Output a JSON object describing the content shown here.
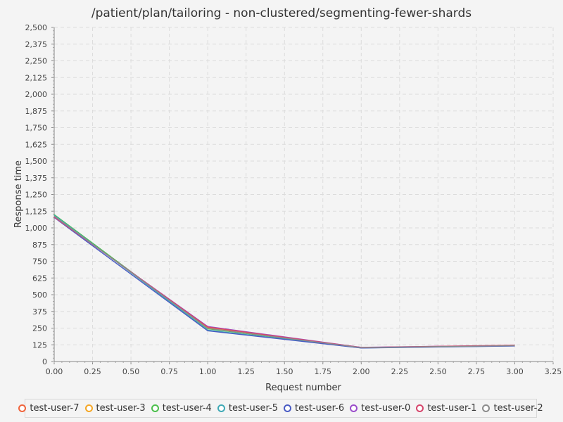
{
  "chart_data": {
    "type": "line",
    "title": "/patient/plan/tailoring - non-clustered/segmenting-fewer-shards",
    "xlabel": "Request number",
    "ylabel": "Response time",
    "xlim": [
      0,
      3.25
    ],
    "ylim": [
      0,
      2500
    ],
    "x_ticks": [
      "0.00",
      "0.25",
      "0.50",
      "0.75",
      "1.00",
      "1.25",
      "1.50",
      "1.75",
      "2.00",
      "2.25",
      "2.50",
      "2.75",
      "3.00",
      "3.25"
    ],
    "y_ticks": [
      "0",
      "125",
      "250",
      "375",
      "500",
      "625",
      "750",
      "875",
      "1,000",
      "1,125",
      "1,250",
      "1,375",
      "1,500",
      "1,625",
      "1,750",
      "1,875",
      "2,000",
      "2,125",
      "2,250",
      "2,375",
      "2,500"
    ],
    "grid": true,
    "legend_position": "bottom",
    "x": [
      0,
      1,
      2,
      3
    ],
    "series": [
      {
        "name": "test-user-7",
        "color": "#f0643c",
        "values": [
          1085,
          255,
          105,
          120
        ]
      },
      {
        "name": "test-user-3",
        "color": "#f5a623",
        "values": [
          1090,
          250,
          104,
          119
        ]
      },
      {
        "name": "test-user-4",
        "color": "#4cbf4c",
        "values": [
          1100,
          245,
          103,
          118
        ]
      },
      {
        "name": "test-user-5",
        "color": "#3fa9b5",
        "values": [
          1095,
          235,
          102,
          117
        ]
      },
      {
        "name": "test-user-6",
        "color": "#4a5cc4",
        "values": [
          1078,
          230,
          101,
          116
        ]
      },
      {
        "name": "test-user-0",
        "color": "#9b4dca",
        "values": [
          1080,
          262,
          106,
          121
        ]
      },
      {
        "name": "test-user-1",
        "color": "#d6456b",
        "values": [
          1082,
          258,
          105,
          122
        ]
      },
      {
        "name": "test-user-2",
        "color": "#8c8c8c",
        "values": [
          1088,
          248,
          104,
          119
        ]
      }
    ]
  }
}
